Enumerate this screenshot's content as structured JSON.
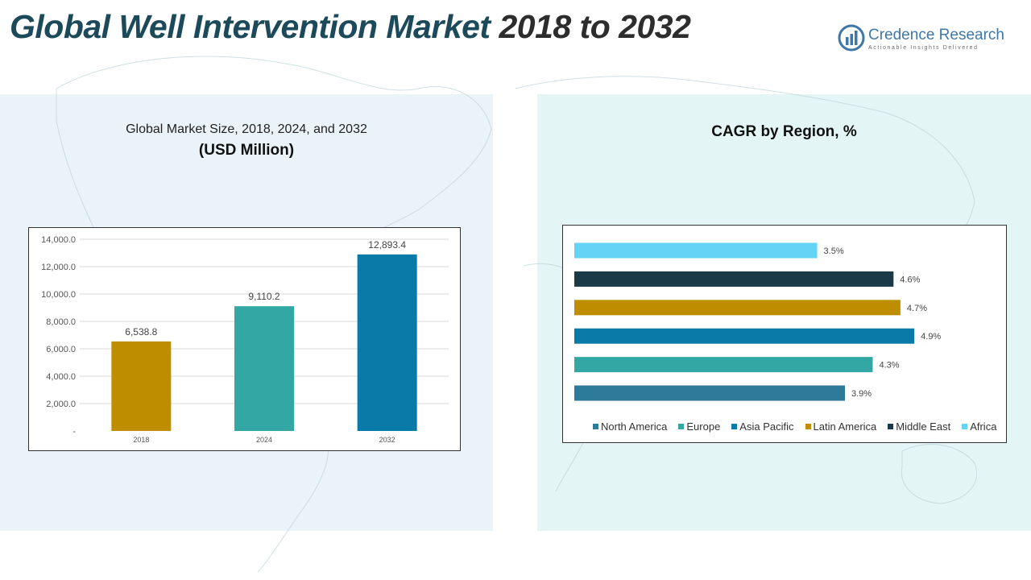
{
  "header": {
    "title_part1": "Global Well Intervention Market",
    "title_part2": " 2018 to 2032",
    "logo_name": "Credence Research",
    "logo_tagline": "Actionable Insights Delivered"
  },
  "left_panel": {
    "subtitle": "Global Market Size, 2018, 2024, and 2032",
    "unit": "(USD Million)"
  },
  "right_panel": {
    "title": "CAGR by Region, %"
  },
  "colors": {
    "gold": "#bf8e00",
    "teal": "#32a7a3",
    "blue": "#0a7ba8",
    "steel": "#2e7a9b",
    "navy": "#1a3a48",
    "sky": "#63d3f6"
  },
  "chart_data": [
    {
      "type": "bar",
      "categories": [
        "2018",
        "2024",
        "2032"
      ],
      "values": [
        6538.8,
        9110.2,
        12893.4
      ],
      "data_labels": [
        "6,538.8",
        "9,110.2",
        "12,893.4"
      ],
      "bar_colors": [
        "#bf8e00",
        "#32a7a3",
        "#0a7ba8"
      ],
      "ylim": [
        0,
        14000
      ],
      "yticks": [
        0,
        2000,
        4000,
        6000,
        8000,
        10000,
        12000,
        14000
      ],
      "ytick_labels": [
        "-",
        "2,000.0",
        "4,000.0",
        "6,000.0",
        "8,000.0",
        "10,000.0",
        "12,000.0",
        "14,000.0"
      ],
      "grid": true
    },
    {
      "type": "bar",
      "orientation": "horizontal",
      "categories": [
        "Africa",
        "Middle East",
        "Latin America",
        "Asia Pacific",
        "Europe",
        "North America"
      ],
      "values": [
        3.5,
        4.6,
        4.7,
        4.9,
        4.3,
        3.9
      ],
      "data_labels": [
        "3.5%",
        "4.6%",
        "4.7%",
        "4.9%",
        "4.3%",
        "3.9%"
      ],
      "bar_colors": [
        "#63d3f6",
        "#1a3a48",
        "#bf8e00",
        "#0a7ba8",
        "#32a7a3",
        "#2e7a9b"
      ],
      "xlim": [
        0,
        5.2
      ],
      "legend": {
        "placement": "bottom",
        "entries": [
          {
            "name": "North America",
            "color": "#2e7a9b"
          },
          {
            "name": "Europe",
            "color": "#32a7a3"
          },
          {
            "name": "Asia Pacific",
            "color": "#0a7ba8"
          },
          {
            "name": "Latin America",
            "color": "#bf8e00"
          },
          {
            "name": "Middle East",
            "color": "#1a3a48"
          },
          {
            "name": "Africa",
            "color": "#63d3f6"
          }
        ]
      },
      "grid": false
    }
  ]
}
